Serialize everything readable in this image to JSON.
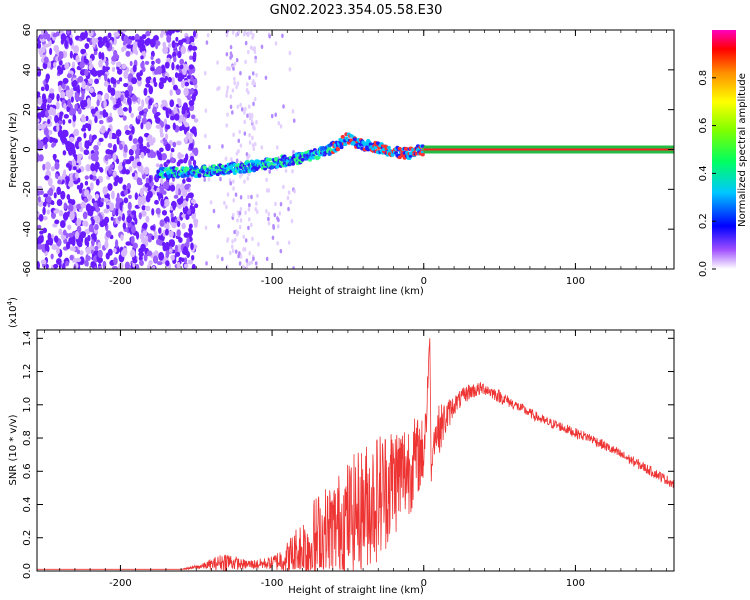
{
  "title": "GN02.2023.354.05.58.E30",
  "chart_data": [
    {
      "type": "heatmap",
      "xlabel": "Height of straight line (km)",
      "ylabel": "Frequency (Hz)",
      "xlim": [
        -255,
        165
      ],
      "ylim": [
        -60,
        60
      ],
      "xticks": [
        -200,
        -100,
        0,
        100
      ],
      "yticks": [
        -60,
        -40,
        -20,
        0,
        20,
        40,
        60
      ],
      "ridge": {
        "x": [
          -170,
          -150,
          -130,
          -110,
          -95,
          -85,
          -75,
          -65,
          -55,
          -50,
          -45,
          -40,
          -35,
          -30,
          -25,
          -20,
          -15,
          -10,
          -5,
          0,
          20,
          60,
          100,
          160
        ],
        "y": [
          -12,
          -11,
          -10,
          -8,
          -6,
          -5,
          -3,
          -1,
          3,
          6,
          3,
          2,
          2,
          1,
          0,
          -1,
          -2,
          -2,
          -1,
          0,
          0,
          0,
          0,
          0
        ]
      },
      "colorbar": {
        "label": "Normalized spectral amplitude",
        "range": [
          0.0,
          1.0
        ],
        "ticks": [
          "0.0",
          "0.2",
          "0.4",
          "0.6",
          "0.8"
        ]
      }
    },
    {
      "type": "line",
      "xlabel": "Height of straight line (km)",
      "ylabel": "SNR (10 * v/v)",
      "multiplier": "(x10",
      "multiplier_exp": "4",
      "xlim": [
        -255,
        165
      ],
      "ylim": [
        0.0,
        1.45
      ],
      "xticks": [
        -200,
        -100,
        0,
        100
      ],
      "yticks": [
        "0.0",
        "0.2",
        "0.4",
        "0.6",
        "0.8",
        "1.0",
        "1.2",
        "1.4"
      ],
      "series": [
        {
          "color": "#ee3333",
          "x": [
            -255,
            -200,
            -160,
            -145,
            -130,
            -120,
            -110,
            -100,
            -90,
            -80,
            -70,
            -60,
            -50,
            -40,
            -30,
            -20,
            -10,
            -5,
            0,
            2,
            4,
            5,
            6,
            10,
            20,
            30,
            40,
            50,
            60,
            70,
            80,
            90,
            100,
            110,
            120,
            130,
            140,
            150,
            160,
            165
          ],
          "y": [
            0.01,
            0.01,
            0.01,
            0.03,
            0.06,
            0.04,
            0.04,
            0.05,
            0.08,
            0.12,
            0.18,
            0.25,
            0.32,
            0.38,
            0.45,
            0.55,
            0.62,
            0.68,
            0.72,
            1.0,
            1.4,
            0.5,
            0.8,
            0.85,
            1.0,
            1.08,
            1.1,
            1.05,
            1.0,
            0.95,
            0.9,
            0.87,
            0.83,
            0.8,
            0.75,
            0.7,
            0.65,
            0.6,
            0.55,
            0.52
          ],
          "noise": [
            0.0,
            0.0,
            0.0,
            0.02,
            0.06,
            0.03,
            0.03,
            0.04,
            0.1,
            0.22,
            0.3,
            0.3,
            0.35,
            0.38,
            0.4,
            0.35,
            0.3,
            0.25,
            0.2,
            0.2,
            0.0,
            0.1,
            0.1,
            0.15,
            0.06,
            0.05,
            0.04,
            0.04,
            0.03,
            0.03,
            0.03,
            0.03,
            0.03,
            0.03,
            0.03,
            0.03,
            0.03,
            0.03,
            0.03,
            0.03
          ]
        }
      ]
    }
  ]
}
